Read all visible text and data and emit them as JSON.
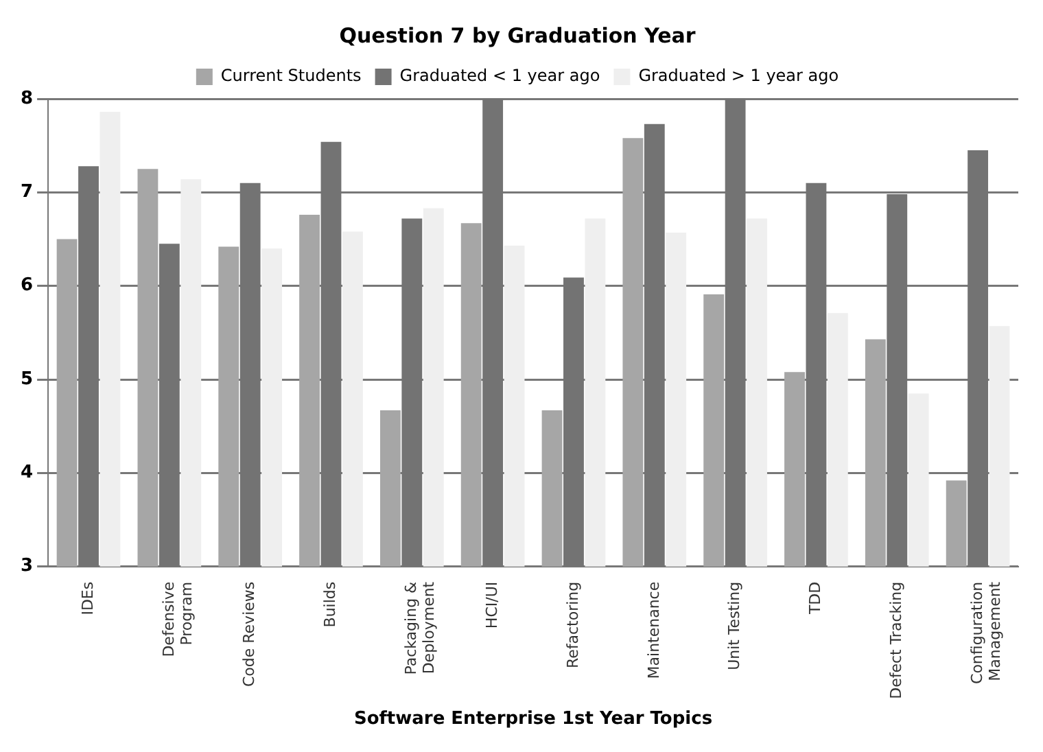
{
  "chart_data": {
    "type": "bar",
    "title": "Question 7 by Graduation Year",
    "xlabel": "Software Enterprise 1st Year Topics",
    "categories": [
      "IDEs",
      "Defensive Program",
      "Code Reviews",
      "Builds",
      "Packaging & Deployment",
      "HCI/UI",
      "Refactoring",
      "Maintenance",
      "Unit Testing",
      "TDD",
      "Defect Tracking",
      "Configuration Management"
    ],
    "series": [
      {
        "name": "Current Students",
        "color": "#a6a6a6",
        "values": [
          6.5,
          7.25,
          6.42,
          6.76,
          4.67,
          6.67,
          4.67,
          7.58,
          5.91,
          5.08,
          5.43,
          3.92
        ]
      },
      {
        "name": "Graduated < 1 year ago",
        "color": "#737373",
        "values": [
          7.28,
          6.45,
          7.1,
          7.54,
          6.72,
          8.0,
          6.09,
          7.73,
          8.0,
          7.1,
          6.98,
          7.45
        ]
      },
      {
        "name": "Graduated > 1 year ago",
        "color": "#efefef",
        "values": [
          7.86,
          7.14,
          6.4,
          6.58,
          6.83,
          6.43,
          6.72,
          6.57,
          6.72,
          5.71,
          4.85,
          5.57
        ]
      }
    ],
    "ylim": [
      3,
      8
    ],
    "yticks": [
      3,
      4,
      5,
      6,
      7,
      8
    ],
    "grid": "y",
    "legend": "top"
  }
}
